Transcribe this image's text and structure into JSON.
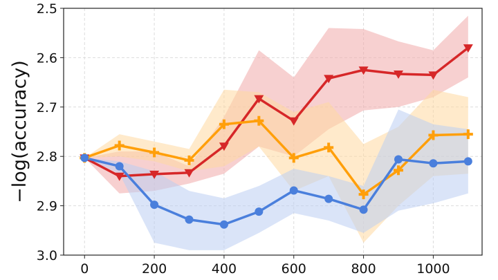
{
  "chart_data": {
    "type": "line",
    "title": "",
    "xlabel": "",
    "ylabel": "−log(accuracy)",
    "y_inverted": true,
    "ylim": [
      3.0,
      2.5
    ],
    "xlim": [
      -60,
      1140
    ],
    "x_ticks": [
      0,
      200,
      400,
      600,
      800,
      1000
    ],
    "y_ticks": [
      2.5,
      2.6,
      2.7,
      2.8,
      2.9,
      3.0
    ],
    "y_tick_labels": [
      "2.5",
      "2.6",
      "2.7",
      "2.8",
      "2.9",
      "3.0"
    ],
    "grid": true,
    "x": [
      0,
      100,
      200,
      300,
      400,
      500,
      600,
      700,
      800,
      900,
      1000,
      1100
    ],
    "series": [
      {
        "color": "#d62728",
        "band_color": "#f1a9a9",
        "marker": "triangle-down",
        "values": [
          2.803,
          2.84,
          2.836,
          2.833,
          2.779,
          2.683,
          2.728,
          2.642,
          2.625,
          2.633,
          2.635,
          2.58
        ],
        "band_upper": [
          2.803,
          2.79,
          2.79,
          2.82,
          2.72,
          2.585,
          2.64,
          2.54,
          2.542,
          2.567,
          2.585,
          2.515
        ],
        "band_lower": [
          2.803,
          2.875,
          2.87,
          2.855,
          2.835,
          2.78,
          2.8,
          2.745,
          2.707,
          2.7,
          2.68,
          2.64
        ]
      },
      {
        "color": "#ff9f0a",
        "band_color": "#ffd9a0",
        "marker": "plus",
        "values": [
          2.803,
          2.778,
          2.792,
          2.808,
          2.735,
          2.728,
          2.803,
          2.782,
          2.877,
          2.828,
          2.757,
          2.755
        ],
        "band_upper": [
          2.803,
          2.755,
          2.77,
          2.785,
          2.665,
          2.67,
          2.71,
          2.69,
          2.775,
          2.74,
          2.665,
          2.68
        ],
        "band_lower": [
          2.803,
          2.8,
          2.81,
          2.83,
          2.82,
          2.78,
          2.87,
          2.84,
          2.975,
          2.9,
          2.84,
          2.835
        ]
      },
      {
        "color": "#4a7fdc",
        "band_color": "#bccdf2",
        "marker": "circle",
        "values": [
          2.803,
          2.82,
          2.898,
          2.928,
          2.938,
          2.912,
          2.869,
          2.886,
          2.908,
          2.806,
          2.814,
          2.81
        ],
        "band_upper": [
          2.803,
          2.81,
          2.83,
          2.87,
          2.885,
          2.86,
          2.825,
          2.84,
          2.86,
          2.705,
          2.735,
          2.745
        ],
        "band_lower": [
          2.803,
          2.835,
          2.975,
          2.99,
          2.99,
          2.955,
          2.915,
          2.93,
          2.955,
          2.91,
          2.895,
          2.875
        ]
      }
    ]
  }
}
